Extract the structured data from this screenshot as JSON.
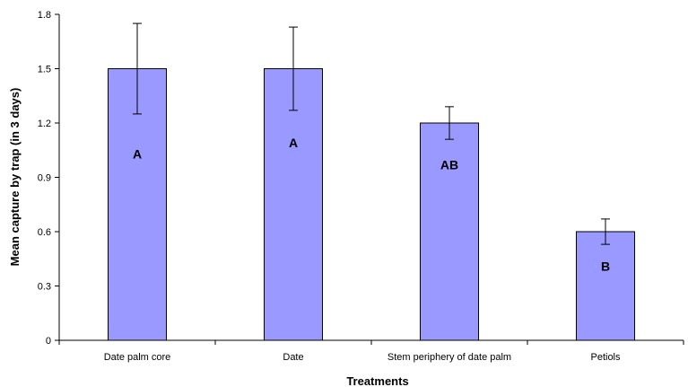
{
  "chart_data": {
    "type": "bar",
    "title": "",
    "xlabel": "Treatments",
    "ylabel": "Mean capture by trap (in 3 days)",
    "categories": [
      "Date palm core",
      "Date",
      "Stem periphery of date palm",
      "Petiols"
    ],
    "values": [
      1.5,
      1.5,
      1.2,
      0.6
    ],
    "error_low": [
      1.25,
      1.27,
      1.11,
      0.53
    ],
    "error_high": [
      1.75,
      1.73,
      1.29,
      0.67
    ],
    "letters": [
      "A",
      "A",
      "AB",
      "B"
    ],
    "ylim": [
      0,
      1.8
    ],
    "yticks": [
      "0",
      "0.3",
      "0.6",
      "0.9",
      "1.2",
      "1.5",
      "1.8"
    ],
    "ytick_values": [
      0,
      0.3,
      0.6,
      0.9,
      1.2,
      1.5,
      1.8
    ],
    "letter_values": [
      1.03,
      1.09,
      0.97,
      0.41
    ],
    "grid": false,
    "legend": "none",
    "bar_color": "#9999FF",
    "bar_edge_color": "#000000"
  }
}
